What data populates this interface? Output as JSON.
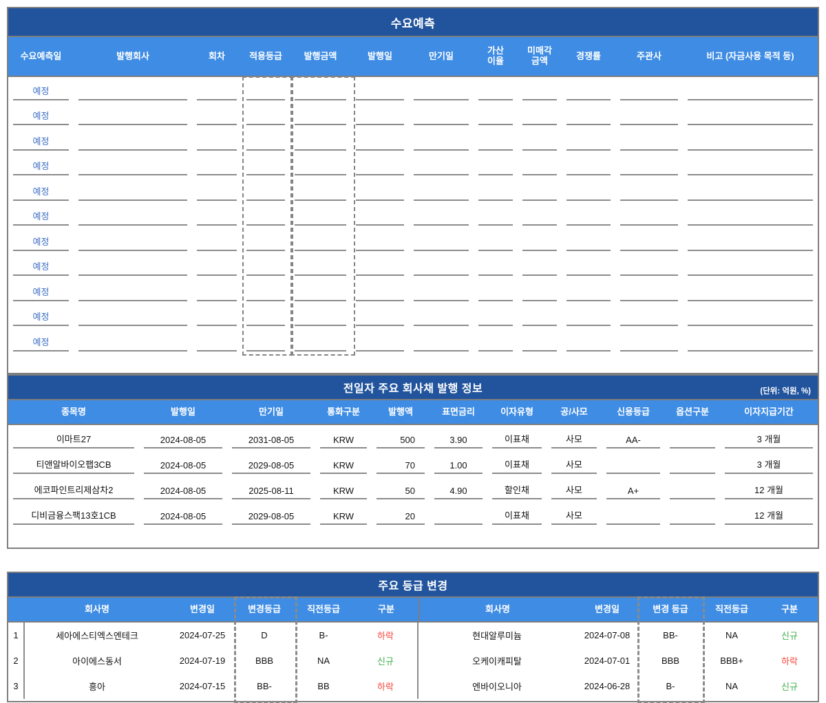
{
  "colors": {
    "title_bar": "#21549D",
    "header_bar": "#3E8CE4",
    "pending_text": "#3E6FC4",
    "underline": "#8B8B8B",
    "border": "#7E7E7E",
    "down_red": "#F7493F",
    "new_green": "#41AF4C"
  },
  "demand_forecast": {
    "title": "수요예측",
    "columns": [
      "수요예측일",
      "발행회사",
      "회차",
      "적용등급",
      "발행금액",
      "발행일",
      "만기일",
      "가산\n이율",
      "미매각\n금액",
      "경쟁률",
      "주관사",
      "비고 (자금사용 목적 등)"
    ],
    "pending_label": "예정",
    "pending_row_count": 11,
    "highlighted_columns": [
      "적용등급",
      "발행금액"
    ]
  },
  "bond_issuance": {
    "title": "전일자 주요 회사채 발행 정보",
    "unit_note": "(단위:  억원,  %)",
    "columns": [
      "종목명",
      "발행일",
      "만기일",
      "통화구분",
      "발행액",
      "표면금리",
      "이자유형",
      "공/사모",
      "신용등급",
      "옵션구분",
      "이자지급기간"
    ],
    "rows": [
      [
        "이마트27",
        "2024-08-05",
        "2031-08-05",
        "KRW",
        "500",
        "3.90",
        "이표채",
        "사모",
        "AA-",
        "",
        "3 개월"
      ],
      [
        "티앤알바이오팹3CB",
        "2024-08-05",
        "2029-08-05",
        "KRW",
        "70",
        "1.00",
        "이표채",
        "사모",
        "",
        "",
        "3 개월"
      ],
      [
        "에코파인트리제삼차2",
        "2024-08-05",
        "2025-08-11",
        "KRW",
        "50",
        "4.90",
        "할인채",
        "사모",
        "A+",
        "",
        "12 개월"
      ],
      [
        "디비금융스팩13호1CB",
        "2024-08-05",
        "2029-08-05",
        "KRW",
        "20",
        "",
        "이표채",
        "사모",
        "",
        "",
        "12 개월"
      ]
    ]
  },
  "rating_changes": {
    "title": "주요 등급 변경",
    "highlighted_columns": [
      "변경등급",
      "변경 등급"
    ],
    "left": {
      "columns": [
        "회사명",
        "변경일",
        "변경등급",
        "직전등급",
        "구분"
      ],
      "rows": [
        {
          "no": "1",
          "company": "세아에스티엑스엔테크",
          "date": "2024-07-25",
          "new_grade": "D",
          "prev_grade": "B-",
          "change": "하락",
          "direction": "down"
        },
        {
          "no": "2",
          "company": "아이에스동서",
          "date": "2024-07-19",
          "new_grade": "BBB",
          "prev_grade": "NA",
          "change": "신규",
          "direction": "new"
        },
        {
          "no": "3",
          "company": "흥아",
          "date": "2024-07-15",
          "new_grade": "BB-",
          "prev_grade": "BB",
          "change": "하락",
          "direction": "down"
        }
      ]
    },
    "right": {
      "columns": [
        "회사명",
        "변경일",
        "변경 등급",
        "직전등급",
        "구분"
      ],
      "rows": [
        {
          "company": "현대알루미늄",
          "date": "2024-07-08",
          "new_grade": "BB-",
          "prev_grade": "NA",
          "change": "신규",
          "direction": "new"
        },
        {
          "company": "오케이캐피탈",
          "date": "2024-07-01",
          "new_grade": "BBB",
          "prev_grade": "BBB+",
          "change": "하락",
          "direction": "down"
        },
        {
          "company": "엔바이오니아",
          "date": "2024-06-28",
          "new_grade": "B-",
          "prev_grade": "NA",
          "change": "신규",
          "direction": "new"
        }
      ]
    },
    "change_colors": {
      "down": "#F7493F",
      "new": "#41AF4C"
    }
  }
}
